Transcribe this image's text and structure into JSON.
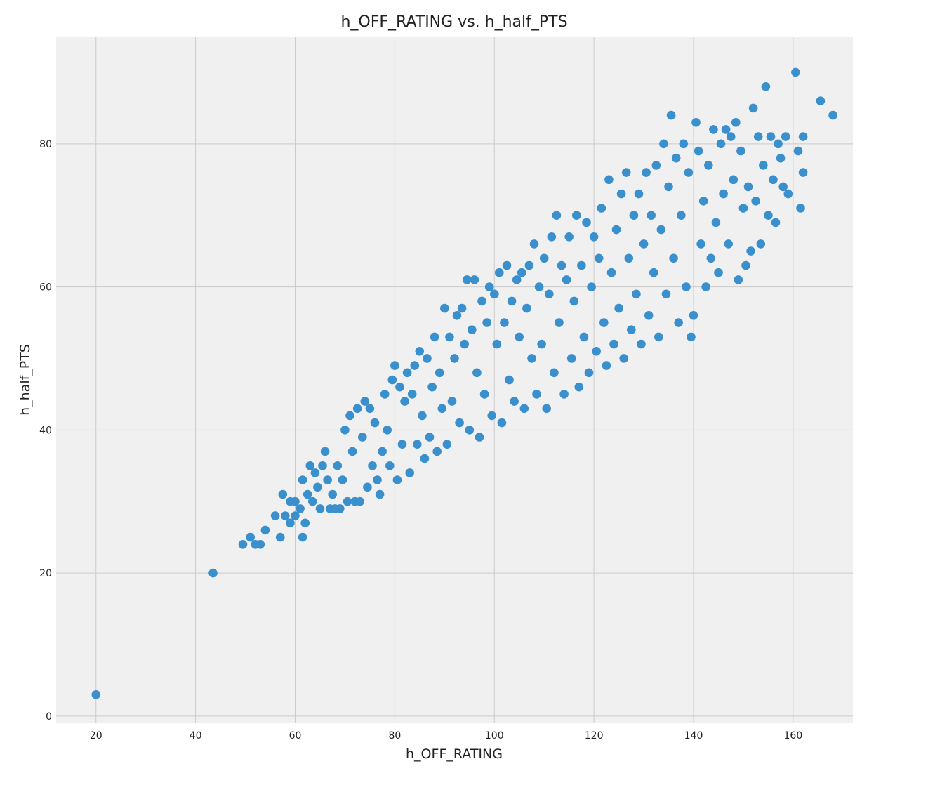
{
  "chart_data": {
    "type": "scatter",
    "title": "h_OFF_RATING vs. h_half_PTS",
    "xlabel": "h_OFF_RATING",
    "ylabel": "h_half_PTS",
    "xlim": [
      12,
      172
    ],
    "ylim": [
      -1,
      95
    ],
    "xticks": [
      20,
      40,
      60,
      80,
      100,
      120,
      140,
      160
    ],
    "yticks": [
      0,
      20,
      40,
      60,
      80
    ],
    "grid": true,
    "style": "fivethirtyeight",
    "colors": {
      "marker": "#3a8fcd",
      "background": "#f0f0f0",
      "grid": "#cbcbcb"
    },
    "series": [
      {
        "points": [
          [
            20,
            3
          ],
          [
            43.5,
            20
          ],
          [
            49.5,
            24
          ],
          [
            51,
            25
          ],
          [
            52,
            24
          ],
          [
            53,
            24
          ],
          [
            54,
            26
          ],
          [
            56,
            28
          ],
          [
            57,
            25
          ],
          [
            57.5,
            31
          ],
          [
            58,
            28
          ],
          [
            59,
            27
          ],
          [
            59,
            30
          ],
          [
            60,
            28
          ],
          [
            60,
            30
          ],
          [
            61,
            29
          ],
          [
            61.5,
            25
          ],
          [
            61.5,
            33
          ],
          [
            62,
            27
          ],
          [
            62.5,
            31
          ],
          [
            63,
            35
          ],
          [
            63.5,
            30
          ],
          [
            64,
            34
          ],
          [
            64.5,
            32
          ],
          [
            65,
            29
          ],
          [
            65.5,
            35
          ],
          [
            66,
            37
          ],
          [
            66.5,
            33
          ],
          [
            67,
            29
          ],
          [
            67.5,
            31
          ],
          [
            68,
            29
          ],
          [
            68.5,
            35
          ],
          [
            69,
            29
          ],
          [
            69.5,
            33
          ],
          [
            70,
            40
          ],
          [
            70.5,
            30
          ],
          [
            71,
            42
          ],
          [
            71.5,
            37
          ],
          [
            72,
            30
          ],
          [
            72.5,
            43
          ],
          [
            73,
            30
          ],
          [
            73.5,
            39
          ],
          [
            74,
            44
          ],
          [
            74.5,
            32
          ],
          [
            75,
            43
          ],
          [
            75.5,
            35
          ],
          [
            76,
            41
          ],
          [
            76.5,
            33
          ],
          [
            77,
            31
          ],
          [
            77.5,
            37
          ],
          [
            78,
            45
          ],
          [
            78.5,
            40
          ],
          [
            79,
            35
          ],
          [
            79.5,
            47
          ],
          [
            80,
            49
          ],
          [
            80.5,
            33
          ],
          [
            81,
            46
          ],
          [
            81.5,
            38
          ],
          [
            82,
            44
          ],
          [
            82.5,
            48
          ],
          [
            83,
            34
          ],
          [
            83.5,
            45
          ],
          [
            84,
            49
          ],
          [
            84.5,
            38
          ],
          [
            85,
            51
          ],
          [
            85.5,
            42
          ],
          [
            86,
            36
          ],
          [
            86.5,
            50
          ],
          [
            87,
            39
          ],
          [
            87.5,
            46
          ],
          [
            88,
            53
          ],
          [
            88.5,
            37
          ],
          [
            89,
            48
          ],
          [
            89.5,
            43
          ],
          [
            90,
            57
          ],
          [
            90.5,
            38
          ],
          [
            91,
            53
          ],
          [
            91.5,
            44
          ],
          [
            92,
            50
          ],
          [
            92.5,
            56
          ],
          [
            93,
            41
          ],
          [
            93.5,
            57
          ],
          [
            94,
            52
          ],
          [
            94.5,
            61
          ],
          [
            95,
            40
          ],
          [
            95.5,
            54
          ],
          [
            96,
            61
          ],
          [
            96.5,
            48
          ],
          [
            97,
            39
          ],
          [
            97.5,
            58
          ],
          [
            98,
            45
          ],
          [
            98.5,
            55
          ],
          [
            99,
            60
          ],
          [
            99.5,
            42
          ],
          [
            100,
            59
          ],
          [
            100.5,
            52
          ],
          [
            101,
            62
          ],
          [
            101.5,
            41
          ],
          [
            102,
            55
          ],
          [
            102.5,
            63
          ],
          [
            103,
            47
          ],
          [
            103.5,
            58
          ],
          [
            104,
            44
          ],
          [
            104.5,
            61
          ],
          [
            105,
            53
          ],
          [
            105.5,
            62
          ],
          [
            106,
            43
          ],
          [
            106.5,
            57
          ],
          [
            107,
            63
          ],
          [
            107.5,
            50
          ],
          [
            108,
            66
          ],
          [
            108.5,
            45
          ],
          [
            109,
            60
          ],
          [
            109.5,
            52
          ],
          [
            110,
            64
          ],
          [
            110.5,
            43
          ],
          [
            111,
            59
          ],
          [
            111.5,
            67
          ],
          [
            112,
            48
          ],
          [
            112.5,
            70
          ],
          [
            113,
            55
          ],
          [
            113.5,
            63
          ],
          [
            114,
            45
          ],
          [
            114.5,
            61
          ],
          [
            115,
            67
          ],
          [
            115.5,
            50
          ],
          [
            116,
            58
          ],
          [
            116.5,
            70
          ],
          [
            117,
            46
          ],
          [
            117.5,
            63
          ],
          [
            118,
            53
          ],
          [
            118.5,
            69
          ],
          [
            119,
            48
          ],
          [
            119.5,
            60
          ],
          [
            120,
            67
          ],
          [
            120.5,
            51
          ],
          [
            121,
            64
          ],
          [
            121.5,
            71
          ],
          [
            122,
            55
          ],
          [
            122.5,
            49
          ],
          [
            123,
            75
          ],
          [
            123.5,
            62
          ],
          [
            124,
            52
          ],
          [
            124.5,
            68
          ],
          [
            125,
            57
          ],
          [
            125.5,
            73
          ],
          [
            126,
            50
          ],
          [
            126.5,
            76
          ],
          [
            127,
            64
          ],
          [
            127.5,
            54
          ],
          [
            128,
            70
          ],
          [
            128.5,
            59
          ],
          [
            129,
            73
          ],
          [
            129.5,
            52
          ],
          [
            130,
            66
          ],
          [
            130.5,
            76
          ],
          [
            131,
            56
          ],
          [
            131.5,
            70
          ],
          [
            132,
            62
          ],
          [
            132.5,
            77
          ],
          [
            133,
            53
          ],
          [
            133.5,
            68
          ],
          [
            134,
            80
          ],
          [
            134.5,
            59
          ],
          [
            135,
            74
          ],
          [
            135.5,
            84
          ],
          [
            136,
            64
          ],
          [
            136.5,
            78
          ],
          [
            137,
            55
          ],
          [
            137.5,
            70
          ],
          [
            138,
            80
          ],
          [
            138.5,
            60
          ],
          [
            139,
            76
          ],
          [
            139.5,
            53
          ],
          [
            140,
            56
          ],
          [
            140.5,
            83
          ],
          [
            141,
            79
          ],
          [
            141.5,
            66
          ],
          [
            142,
            72
          ],
          [
            142.5,
            60
          ],
          [
            143,
            77
          ],
          [
            143.5,
            64
          ],
          [
            144,
            82
          ],
          [
            144.5,
            69
          ],
          [
            145,
            62
          ],
          [
            145.5,
            80
          ],
          [
            146,
            73
          ],
          [
            146.5,
            82
          ],
          [
            147,
            66
          ],
          [
            147.5,
            81
          ],
          [
            148,
            75
          ],
          [
            148.5,
            83
          ],
          [
            149,
            61
          ],
          [
            149.5,
            79
          ],
          [
            150,
            71
          ],
          [
            150.5,
            63
          ],
          [
            151,
            74
          ],
          [
            151.5,
            65
          ],
          [
            152,
            85
          ],
          [
            152.5,
            72
          ],
          [
            153,
            81
          ],
          [
            153.5,
            66
          ],
          [
            154,
            77
          ],
          [
            154.5,
            88
          ],
          [
            155,
            70
          ],
          [
            155.5,
            81
          ],
          [
            156,
            75
          ],
          [
            156.5,
            69
          ],
          [
            157,
            80
          ],
          [
            157.5,
            78
          ],
          [
            158,
            74
          ],
          [
            158.5,
            81
          ],
          [
            159,
            73
          ],
          [
            160.5,
            90
          ],
          [
            161,
            79
          ],
          [
            161.5,
            71
          ],
          [
            162,
            76
          ],
          [
            162,
            81
          ],
          [
            165.5,
            86
          ],
          [
            168,
            84
          ]
        ]
      }
    ]
  }
}
